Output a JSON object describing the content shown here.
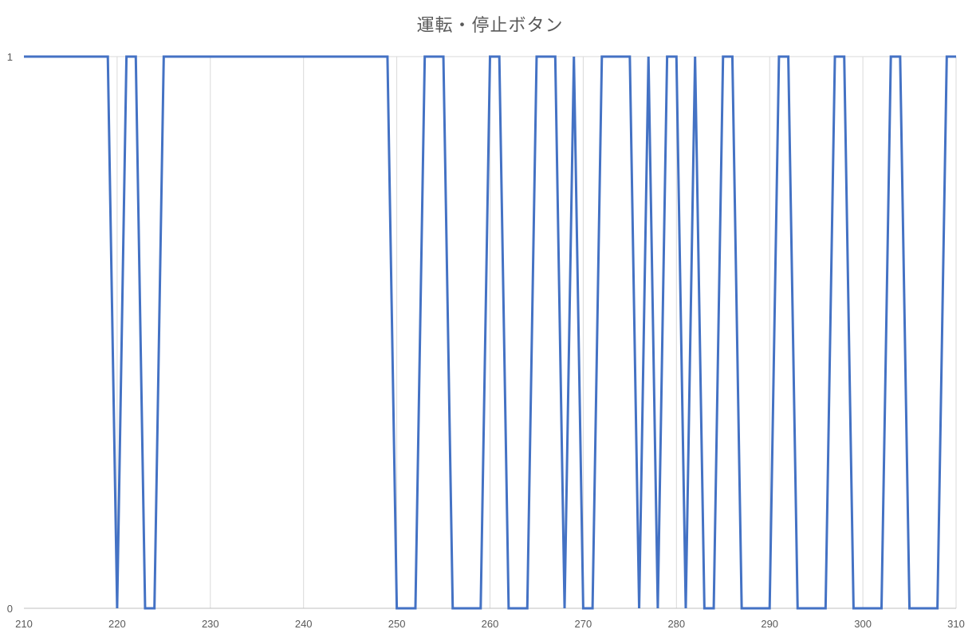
{
  "chart_data": {
    "type": "line",
    "title": "運転・停止ボタン",
    "xlabel": "",
    "ylabel": "",
    "xlim": [
      210,
      310
    ],
    "ylim": [
      0,
      1
    ],
    "x_ticks": [
      210,
      220,
      230,
      240,
      250,
      260,
      270,
      280,
      290,
      300,
      310
    ],
    "y_ticks": [
      0,
      1
    ],
    "grid": {
      "vertical": true,
      "horizontal": true
    },
    "series": [
      {
        "color": "#4472C4",
        "x": [
          210,
          211,
          212,
          213,
          214,
          215,
          216,
          217,
          218,
          219,
          220,
          221,
          222,
          223,
          224,
          225,
          226,
          227,
          228,
          229,
          230,
          231,
          232,
          233,
          234,
          235,
          236,
          237,
          238,
          239,
          240,
          241,
          242,
          243,
          244,
          245,
          246,
          247,
          248,
          249,
          250,
          251,
          252,
          253,
          254,
          255,
          256,
          257,
          258,
          259,
          260,
          261,
          262,
          263,
          264,
          265,
          266,
          267,
          268,
          269,
          270,
          271,
          272,
          273,
          274,
          275,
          276,
          277,
          278,
          279,
          280,
          281,
          282,
          283,
          284,
          285,
          286,
          287,
          288,
          289,
          290,
          291,
          292,
          293,
          294,
          295,
          296,
          297,
          298,
          299,
          300,
          301,
          302,
          303,
          304,
          305,
          306,
          307,
          308,
          309,
          310
        ],
        "values": [
          1,
          1,
          1,
          1,
          1,
          1,
          1,
          1,
          1,
          1,
          0,
          1,
          1,
          0,
          0,
          1,
          1,
          1,
          1,
          1,
          1,
          1,
          1,
          1,
          1,
          1,
          1,
          1,
          1,
          1,
          1,
          1,
          1,
          1,
          1,
          1,
          1,
          1,
          1,
          1,
          0,
          0,
          0,
          1,
          1,
          1,
          0,
          0,
          0,
          0,
          1,
          1,
          0,
          0,
          0,
          1,
          1,
          1,
          0,
          1,
          0,
          0,
          1,
          1,
          1,
          1,
          0,
          1,
          0,
          1,
          1,
          0,
          1,
          0,
          0,
          1,
          1,
          0,
          0,
          0,
          0,
          1,
          1,
          0,
          0,
          0,
          0,
          1,
          1,
          0,
          0,
          0,
          0,
          1,
          1,
          0,
          0,
          0,
          0,
          1,
          1
        ]
      }
    ]
  }
}
